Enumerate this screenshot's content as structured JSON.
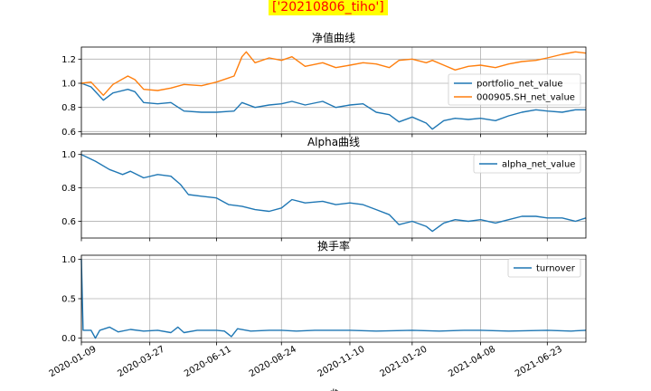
{
  "figure": {
    "suptitle": "['20210806_tiho']",
    "suptitle_bg": "#ffff00",
    "suptitle_color": "#ff0000",
    "xlabel": "dt"
  },
  "chart_data": [
    {
      "type": "line",
      "title": "净值曲线",
      "x_ticks": [
        "2020-01-09",
        "2020-03-27",
        "2020-06-11",
        "2020-08-24",
        "2020-11-10",
        "2021-01-20",
        "2021-04-08",
        "2021-06-23"
      ],
      "x_range": [
        "2020-01-09",
        "2021-08-06"
      ],
      "ylim": [
        0.58,
        1.3
      ],
      "y_ticks": [
        0.6,
        0.8,
        1.0,
        1.2
      ],
      "y_tick_labels": [
        "0.6",
        "0.8",
        "1.0",
        "1.2"
      ],
      "grid": true,
      "legend": "center-right",
      "series": [
        {
          "name": "portfolio_net_value",
          "color": "#1f77b4",
          "points": [
            [
              "2020-01-09",
              1.0
            ],
            [
              "2020-01-20",
              0.97
            ],
            [
              "2020-02-03",
              0.86
            ],
            [
              "2020-02-14",
              0.92
            ],
            [
              "2020-03-02",
              0.95
            ],
            [
              "2020-03-10",
              0.93
            ],
            [
              "2020-03-20",
              0.84
            ],
            [
              "2020-04-05",
              0.83
            ],
            [
              "2020-04-20",
              0.84
            ],
            [
              "2020-05-05",
              0.77
            ],
            [
              "2020-05-25",
              0.76
            ],
            [
              "2020-06-11",
              0.76
            ],
            [
              "2020-07-01",
              0.77
            ],
            [
              "2020-07-10",
              0.84
            ],
            [
              "2020-07-25",
              0.8
            ],
            [
              "2020-08-10",
              0.82
            ],
            [
              "2020-08-24",
              0.83
            ],
            [
              "2020-09-05",
              0.85
            ],
            [
              "2020-09-20",
              0.82
            ],
            [
              "2020-10-10",
              0.85
            ],
            [
              "2020-10-25",
              0.8
            ],
            [
              "2020-11-10",
              0.82
            ],
            [
              "2020-11-25",
              0.83
            ],
            [
              "2020-12-10",
              0.76
            ],
            [
              "2020-12-25",
              0.74
            ],
            [
              "2021-01-05",
              0.68
            ],
            [
              "2021-01-20",
              0.72
            ],
            [
              "2021-02-05",
              0.67
            ],
            [
              "2021-02-12",
              0.62
            ],
            [
              "2021-02-25",
              0.69
            ],
            [
              "2021-03-10",
              0.71
            ],
            [
              "2021-03-25",
              0.7
            ],
            [
              "2021-04-08",
              0.71
            ],
            [
              "2021-04-25",
              0.69
            ],
            [
              "2021-05-10",
              0.73
            ],
            [
              "2021-05-25",
              0.76
            ],
            [
              "2021-06-10",
              0.78
            ],
            [
              "2021-06-23",
              0.77
            ],
            [
              "2021-07-10",
              0.76
            ],
            [
              "2021-07-25",
              0.78
            ],
            [
              "2021-08-06",
              0.78
            ]
          ]
        },
        {
          "name": "000905.SH_net_value",
          "color": "#ff7f0e",
          "points": [
            [
              "2020-01-09",
              1.0
            ],
            [
              "2020-01-20",
              1.01
            ],
            [
              "2020-02-03",
              0.9
            ],
            [
              "2020-02-14",
              0.99
            ],
            [
              "2020-03-02",
              1.06
            ],
            [
              "2020-03-10",
              1.03
            ],
            [
              "2020-03-20",
              0.95
            ],
            [
              "2020-04-05",
              0.94
            ],
            [
              "2020-04-20",
              0.96
            ],
            [
              "2020-05-05",
              0.99
            ],
            [
              "2020-05-25",
              0.98
            ],
            [
              "2020-06-11",
              1.01
            ],
            [
              "2020-07-01",
              1.06
            ],
            [
              "2020-07-10",
              1.22
            ],
            [
              "2020-07-15",
              1.26
            ],
            [
              "2020-07-25",
              1.17
            ],
            [
              "2020-08-10",
              1.21
            ],
            [
              "2020-08-24",
              1.19
            ],
            [
              "2020-09-05",
              1.22
            ],
            [
              "2020-09-20",
              1.14
            ],
            [
              "2020-10-10",
              1.17
            ],
            [
              "2020-10-25",
              1.13
            ],
            [
              "2020-11-10",
              1.15
            ],
            [
              "2020-11-25",
              1.17
            ],
            [
              "2020-12-10",
              1.16
            ],
            [
              "2020-12-25",
              1.13
            ],
            [
              "2021-01-05",
              1.19
            ],
            [
              "2021-01-20",
              1.2
            ],
            [
              "2021-02-05",
              1.17
            ],
            [
              "2021-02-12",
              1.19
            ],
            [
              "2021-02-25",
              1.15
            ],
            [
              "2021-03-10",
              1.11
            ],
            [
              "2021-03-25",
              1.14
            ],
            [
              "2021-04-08",
              1.15
            ],
            [
              "2021-04-25",
              1.13
            ],
            [
              "2021-05-10",
              1.16
            ],
            [
              "2021-05-25",
              1.18
            ],
            [
              "2021-06-10",
              1.19
            ],
            [
              "2021-06-23",
              1.21
            ],
            [
              "2021-07-10",
              1.24
            ],
            [
              "2021-07-25",
              1.26
            ],
            [
              "2021-08-06",
              1.25
            ]
          ]
        }
      ]
    },
    {
      "type": "line",
      "title": "Alpha曲线",
      "x_ticks": [
        "2020-01-09",
        "2020-03-27",
        "2020-06-11",
        "2020-08-24",
        "2020-11-10",
        "2021-01-20",
        "2021-04-08",
        "2021-06-23"
      ],
      "x_range": [
        "2020-01-09",
        "2021-08-06"
      ],
      "ylim": [
        0.5,
        1.02
      ],
      "y_ticks": [
        0.6,
        0.8,
        1.0
      ],
      "y_tick_labels": [
        "0.6",
        "0.8",
        "1.0"
      ],
      "grid": true,
      "legend": "top-right",
      "series": [
        {
          "name": "alpha_net_value",
          "color": "#1f77b4",
          "points": [
            [
              "2020-01-09",
              1.0
            ],
            [
              "2020-01-25",
              0.96
            ],
            [
              "2020-02-10",
              0.91
            ],
            [
              "2020-02-25",
              0.88
            ],
            [
              "2020-03-05",
              0.9
            ],
            [
              "2020-03-20",
              0.86
            ],
            [
              "2020-04-05",
              0.88
            ],
            [
              "2020-04-20",
              0.87
            ],
            [
              "2020-05-01",
              0.82
            ],
            [
              "2020-05-10",
              0.76
            ],
            [
              "2020-05-25",
              0.75
            ],
            [
              "2020-06-11",
              0.74
            ],
            [
              "2020-06-25",
              0.7
            ],
            [
              "2020-07-10",
              0.69
            ],
            [
              "2020-07-25",
              0.67
            ],
            [
              "2020-08-10",
              0.66
            ],
            [
              "2020-08-24",
              0.68
            ],
            [
              "2020-09-05",
              0.73
            ],
            [
              "2020-09-20",
              0.71
            ],
            [
              "2020-10-10",
              0.72
            ],
            [
              "2020-10-25",
              0.7
            ],
            [
              "2020-11-10",
              0.71
            ],
            [
              "2020-11-25",
              0.7
            ],
            [
              "2020-12-10",
              0.67
            ],
            [
              "2020-12-25",
              0.64
            ],
            [
              "2021-01-05",
              0.58
            ],
            [
              "2021-01-20",
              0.6
            ],
            [
              "2021-02-05",
              0.57
            ],
            [
              "2021-02-12",
              0.54
            ],
            [
              "2021-02-25",
              0.59
            ],
            [
              "2021-03-10",
              0.61
            ],
            [
              "2021-03-25",
              0.6
            ],
            [
              "2021-04-08",
              0.61
            ],
            [
              "2021-04-25",
              0.59
            ],
            [
              "2021-05-10",
              0.61
            ],
            [
              "2021-05-25",
              0.63
            ],
            [
              "2021-06-10",
              0.63
            ],
            [
              "2021-06-23",
              0.62
            ],
            [
              "2021-07-10",
              0.62
            ],
            [
              "2021-07-25",
              0.6
            ],
            [
              "2021-08-06",
              0.62
            ]
          ]
        }
      ]
    },
    {
      "type": "line",
      "title": "换手率",
      "x_ticks": [
        "2020-01-09",
        "2020-03-27",
        "2020-06-11",
        "2020-08-24",
        "2020-11-10",
        "2021-01-20",
        "2021-04-08",
        "2021-06-23"
      ],
      "x_range": [
        "2020-01-09",
        "2021-08-06"
      ],
      "ylim": [
        -0.05,
        1.05
      ],
      "y_ticks": [
        0.0,
        0.5,
        1.0
      ],
      "y_tick_labels": [
        "0.0",
        "0.5",
        "1.0"
      ],
      "grid": true,
      "legend": "top-right",
      "series": [
        {
          "name": "turnover",
          "color": "#1f77b4",
          "points": [
            [
              "2020-01-09",
              1.0
            ],
            [
              "2020-01-11",
              0.1
            ],
            [
              "2020-01-20",
              0.1
            ],
            [
              "2020-01-25",
              0.0
            ],
            [
              "2020-01-30",
              0.1
            ],
            [
              "2020-02-10",
              0.14
            ],
            [
              "2020-02-20",
              0.08
            ],
            [
              "2020-03-05",
              0.11
            ],
            [
              "2020-03-20",
              0.09
            ],
            [
              "2020-04-05",
              0.1
            ],
            [
              "2020-04-20",
              0.07
            ],
            [
              "2020-04-28",
              0.14
            ],
            [
              "2020-05-05",
              0.07
            ],
            [
              "2020-05-20",
              0.1
            ],
            [
              "2020-06-11",
              0.1
            ],
            [
              "2020-06-20",
              0.09
            ],
            [
              "2020-06-28",
              0.02
            ],
            [
              "2020-07-05",
              0.12
            ],
            [
              "2020-07-20",
              0.09
            ],
            [
              "2020-08-10",
              0.1
            ],
            [
              "2020-08-24",
              0.1
            ],
            [
              "2020-09-10",
              0.09
            ],
            [
              "2020-10-01",
              0.1
            ],
            [
              "2020-11-10",
              0.1
            ],
            [
              "2020-12-10",
              0.09
            ],
            [
              "2021-01-20",
              0.1
            ],
            [
              "2021-02-20",
              0.09
            ],
            [
              "2021-03-20",
              0.1
            ],
            [
              "2021-04-08",
              0.1
            ],
            [
              "2021-05-10",
              0.09
            ],
            [
              "2021-06-23",
              0.1
            ],
            [
              "2021-07-20",
              0.09
            ],
            [
              "2021-08-06",
              0.1
            ]
          ]
        }
      ]
    }
  ]
}
